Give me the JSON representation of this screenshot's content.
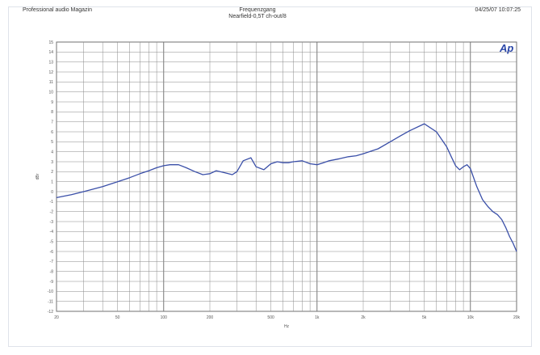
{
  "header": {
    "left_text": "Professional audio Magazin",
    "center_title": "Frequenzgang",
    "center_subtitle": "Nearfield-0,5T ch-out/8",
    "right_text": "04/25/07 10:07:25"
  },
  "logo_text": "Ap",
  "chart_data": {
    "type": "line",
    "title": "Frequenzgang",
    "subtitle": "Nearfield-0,5T ch-out/8",
    "xlabel": "Hz",
    "ylabel": "dBr",
    "x_scale": "log",
    "xlim": [
      20,
      20000
    ],
    "ylim": [
      -12,
      15
    ],
    "grid": true,
    "legend": "none",
    "x_ticks": [
      {
        "value": 20,
        "label": "20"
      },
      {
        "value": 50,
        "label": "50"
      },
      {
        "value": 100,
        "label": "100"
      },
      {
        "value": 200,
        "label": "200"
      },
      {
        "value": 500,
        "label": "500"
      },
      {
        "value": 1000,
        "label": "1k"
      },
      {
        "value": 2000,
        "label": "2k"
      },
      {
        "value": 5000,
        "label": "5k"
      },
      {
        "value": 10000,
        "label": "10k"
      },
      {
        "value": 20000,
        "label": "20k"
      }
    ],
    "y_ticks": [
      15,
      14,
      13,
      12,
      11,
      10,
      9,
      8,
      7,
      6,
      5,
      4,
      3,
      2,
      1,
      0,
      -1,
      -2,
      -3,
      -4,
      -5,
      -6,
      -7,
      -8,
      -9,
      -10,
      -11,
      -12
    ],
    "series": [
      {
        "color": "#3a4fa8",
        "x": [
          20,
          25,
          30,
          40,
          50,
          60,
          70,
          80,
          90,
          100,
          110,
          125,
          140,
          160,
          180,
          200,
          220,
          250,
          280,
          300,
          330,
          370,
          400,
          450,
          500,
          550,
          600,
          650,
          700,
          800,
          900,
          1000,
          1100,
          1200,
          1400,
          1600,
          1800,
          2000,
          2500,
          3000,
          3500,
          4000,
          5000,
          6000,
          7000,
          7500,
          8000,
          8500,
          9000,
          9500,
          10000,
          11000,
          12000,
          13000,
          14000,
          15000,
          16000,
          17000,
          18000,
          19000,
          20000
        ],
        "y": [
          -0.6,
          -0.3,
          0.0,
          0.5,
          1.0,
          1.4,
          1.8,
          2.1,
          2.4,
          2.6,
          2.7,
          2.7,
          2.4,
          2.0,
          1.7,
          1.8,
          2.1,
          1.9,
          1.7,
          2.0,
          3.1,
          3.4,
          2.5,
          2.2,
          2.8,
          3.0,
          2.9,
          2.9,
          3.0,
          3.1,
          2.8,
          2.7,
          2.9,
          3.1,
          3.3,
          3.5,
          3.6,
          3.8,
          4.3,
          5.0,
          5.6,
          6.1,
          6.8,
          6.0,
          4.5,
          3.5,
          2.6,
          2.2,
          2.5,
          2.7,
          2.3,
          0.5,
          -0.8,
          -1.5,
          -2.0,
          -2.3,
          -2.8,
          -3.6,
          -4.5,
          -5.2,
          -6.0
        ]
      }
    ]
  }
}
